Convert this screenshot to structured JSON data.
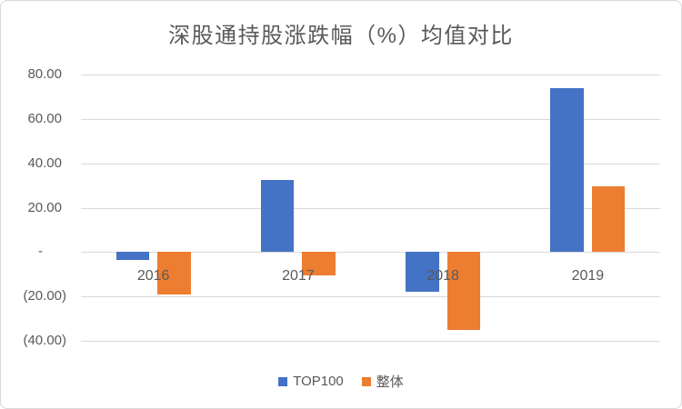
{
  "chart_data": {
    "type": "bar",
    "title": "深股通持股涨跌幅（%）均值对比",
    "categories": [
      "2016",
      "2017",
      "2018",
      "2019"
    ],
    "series": [
      {
        "name": "TOP100",
        "color": "#4472C4",
        "values": [
          -3.4,
          32.3,
          -17.7,
          74.0
        ]
      },
      {
        "name": "整体",
        "color": "#ED7D31",
        "values": [
          -19.1,
          -10.4,
          -35.0,
          29.7
        ]
      }
    ],
    "y_ticks": [
      {
        "label": "80.00",
        "value": 80
      },
      {
        "label": "60.00",
        "value": 60
      },
      {
        "label": "40.00",
        "value": 40
      },
      {
        "label": "20.00",
        "value": 20
      },
      {
        "label": "-",
        "value": 0
      },
      {
        "label": "(20.00)",
        "value": -20
      },
      {
        "label": "(40.00)",
        "value": -40
      }
    ],
    "ylim": [
      -40,
      80
    ],
    "number_format": "accounting",
    "grid": true,
    "legend_position": "bottom",
    "xlabel": "",
    "ylabel": "",
    "text_color": "#595959",
    "gridline_color": "#D9D9D9",
    "background_color": "#FFFFFF",
    "border_color": "#D9D9D9"
  }
}
